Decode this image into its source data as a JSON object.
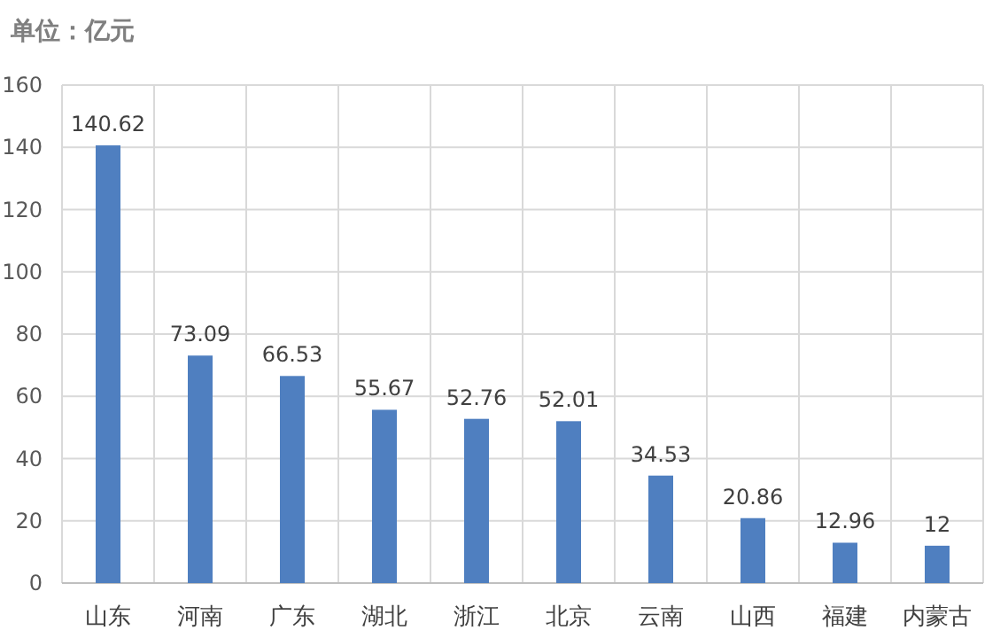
{
  "chart_data": {
    "type": "bar",
    "title": "单位：亿元",
    "categories": [
      "山东",
      "河南",
      "广东",
      "湖北",
      "浙江",
      "北京",
      "云南",
      "山西",
      "福建",
      "内蒙古"
    ],
    "values": [
      140.62,
      73.09,
      66.53,
      55.67,
      52.76,
      52.01,
      34.53,
      20.86,
      12.96,
      12
    ],
    "color": "#4f7fc0",
    "ylim": [
      0,
      160
    ],
    "yticks": [
      0,
      20,
      40,
      60,
      80,
      100,
      120,
      140,
      160
    ],
    "grid": true,
    "data_labels": true
  }
}
